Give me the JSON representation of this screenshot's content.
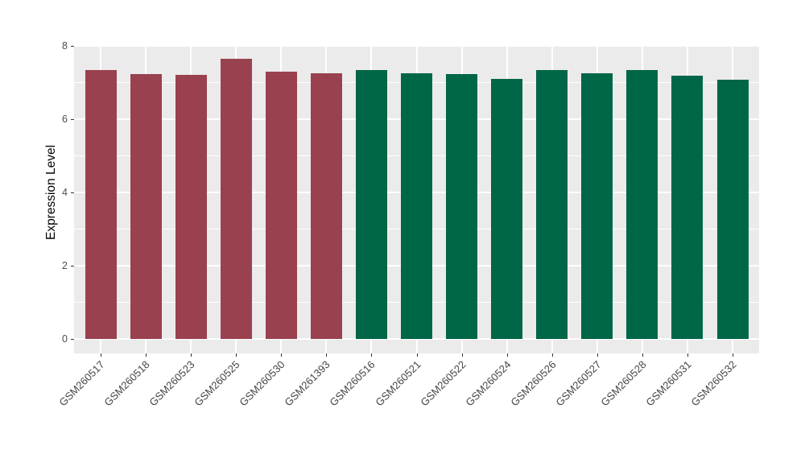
{
  "chart_data": {
    "type": "bar",
    "title": "",
    "xlabel": "",
    "ylabel": "Expression Level",
    "categories": [
      "GSM260517",
      "GSM260518",
      "GSM260523",
      "GSM260525",
      "GSM260530",
      "GSM261393",
      "GSM260516",
      "GSM260521",
      "GSM260522",
      "GSM260524",
      "GSM260526",
      "GSM260527",
      "GSM260528",
      "GSM260531",
      "GSM260532"
    ],
    "values": [
      7.33,
      7.24,
      7.21,
      7.64,
      7.3,
      7.26,
      7.33,
      7.25,
      7.22,
      7.1,
      7.33,
      7.25,
      7.33,
      7.19,
      7.08
    ],
    "bar_colors": [
      "#9A4150",
      "#9A4150",
      "#9A4150",
      "#9A4150",
      "#9A4150",
      "#9A4150",
      "#006648",
      "#006648",
      "#006648",
      "#006648",
      "#006648",
      "#006648",
      "#006648",
      "#006648",
      "#006648"
    ],
    "group_colors": {
      "left_group": "#9A4150",
      "right_group": "#006648"
    },
    "ylim": [
      0,
      8
    ],
    "yticks": [
      0,
      2,
      4,
      6,
      8
    ],
    "yticks_minor": [
      1,
      3,
      5,
      7
    ],
    "grid": true,
    "legend": "none",
    "panel_bg": "#EBEBEB",
    "grid_color": "#FFFFFF",
    "tick_mark_color": "#333333",
    "tick_label_color": "#4D4D4D",
    "axis_title_color": "#000000"
  }
}
